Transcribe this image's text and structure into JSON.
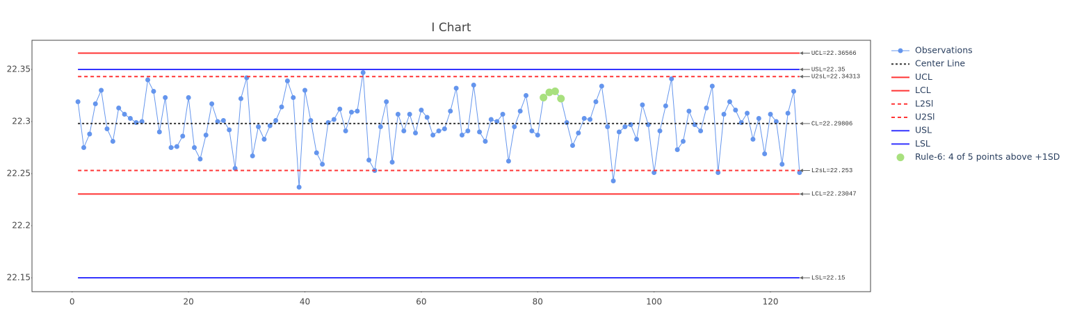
{
  "chart_data": {
    "type": "control",
    "title": "I Chart",
    "xlim": [
      -6.9,
      137.2
    ],
    "xticks": [
      0,
      20,
      40,
      60,
      80,
      100,
      120
    ],
    "ylim": [
      22.1367,
      22.378
    ],
    "yticks": [
      22.15,
      22.2,
      22.25,
      22.3,
      22.35
    ],
    "grid": false,
    "legend": "right",
    "series": [
      {
        "name": "Observations",
        "mode": "lines+markers",
        "color": "#6495ed",
        "x": [
          1,
          2,
          3,
          4,
          5,
          6,
          7,
          8,
          9,
          10,
          11,
          12,
          13,
          14,
          15,
          16,
          17,
          18,
          19,
          20,
          21,
          22,
          23,
          24,
          25,
          26,
          27,
          28,
          29,
          30,
          31,
          32,
          33,
          34,
          35,
          36,
          37,
          38,
          39,
          40,
          41,
          42,
          43,
          44,
          45,
          46,
          47,
          48,
          49,
          50,
          51,
          52,
          53,
          54,
          55,
          56,
          57,
          58,
          59,
          60,
          61,
          62,
          63,
          64,
          65,
          66,
          67,
          68,
          69,
          70,
          71,
          72,
          73,
          74,
          75,
          76,
          77,
          78,
          79,
          80,
          81,
          82,
          83,
          84,
          85,
          86,
          87,
          88,
          89,
          90,
          91,
          92,
          93,
          94,
          95,
          96,
          97,
          98,
          99,
          100,
          101,
          102,
          103,
          104,
          105,
          106,
          107,
          108,
          109,
          110,
          111,
          112,
          113,
          114,
          115,
          116,
          117,
          118,
          119,
          120,
          121,
          122,
          123,
          124,
          125
        ],
        "values": [
          22.319,
          22.275,
          22.288,
          22.317,
          22.33,
          22.293,
          22.281,
          22.313,
          22.307,
          22.303,
          22.299,
          22.3,
          22.34,
          22.329,
          22.29,
          22.323,
          22.275,
          22.276,
          22.286,
          22.323,
          22.275,
          22.264,
          22.287,
          22.317,
          22.3,
          22.301,
          22.292,
          22.255,
          22.322,
          22.342,
          22.267,
          22.295,
          22.283,
          22.296,
          22.301,
          22.314,
          22.339,
          22.323,
          22.237,
          22.33,
          22.301,
          22.27,
          22.259,
          22.299,
          22.302,
          22.312,
          22.291,
          22.309,
          22.31,
          22.347,
          22.263,
          22.253,
          22.295,
          22.319,
          22.261,
          22.307,
          22.291,
          22.307,
          22.289,
          22.311,
          22.304,
          22.287,
          22.291,
          22.293,
          22.31,
          22.332,
          22.287,
          22.291,
          22.335,
          22.29,
          22.281,
          22.302,
          22.3,
          22.307,
          22.262,
          22.295,
          22.31,
          22.325,
          22.291,
          22.287,
          22.323,
          22.328,
          22.329,
          22.322,
          22.299,
          22.277,
          22.289,
          22.303,
          22.302,
          22.319,
          22.334,
          22.295,
          22.243,
          22.29,
          22.295,
          22.297,
          22.283,
          22.316,
          22.297,
          22.251,
          22.291,
          22.315,
          22.341,
          22.273,
          22.281,
          22.31,
          22.297,
          22.291,
          22.313,
          22.334,
          22.251,
          22.307,
          22.319,
          22.311,
          22.299,
          22.308,
          22.283,
          22.303,
          22.269,
          22.307,
          22.3,
          22.259,
          22.308,
          22.329,
          22.251
        ]
      },
      {
        "name": "Center Line",
        "mode": "lines",
        "color": "#333333",
        "dash": "dot",
        "x": [
          1,
          125
        ],
        "values": [
          22.29806,
          22.29806
        ],
        "label": "CL=22.29806"
      },
      {
        "name": "UCL",
        "mode": "lines",
        "color": "#ff3333",
        "dash": "solid",
        "x": [
          1,
          125
        ],
        "values": [
          22.36566,
          22.36566
        ],
        "label": "UCL=22.36566"
      },
      {
        "name": "LCL",
        "mode": "lines",
        "color": "#ff3333",
        "dash": "solid",
        "x": [
          1,
          125
        ],
        "values": [
          22.23047,
          22.23047
        ],
        "label": "LCL=22.23047"
      },
      {
        "name": "L2Sl",
        "mode": "lines",
        "color": "#ff3333",
        "dash": "dash",
        "x": [
          1,
          125
        ],
        "values": [
          22.253,
          22.253
        ],
        "label": "L2sL=22.253"
      },
      {
        "name": "U2Sl",
        "mode": "lines",
        "color": "#ff3333",
        "dash": "dash",
        "x": [
          1,
          125
        ],
        "values": [
          22.34313,
          22.34313
        ],
        "label": "U2sL=22.34313"
      },
      {
        "name": "USL",
        "mode": "lines",
        "color": "#3333ff",
        "dash": "solid",
        "x": [
          1,
          125
        ],
        "values": [
          22.35,
          22.35
        ],
        "label": "USL=22.35"
      },
      {
        "name": "LSL",
        "mode": "lines",
        "color": "#3333ff",
        "dash": "solid",
        "x": [
          1,
          125
        ],
        "values": [
          22.15,
          22.15
        ],
        "label": "LSL=22.15"
      },
      {
        "name": "Rule-6: 4 of 5 points above +1SD",
        "mode": "markers",
        "color": "#a8e07e",
        "size": 5.5,
        "x": [
          81,
          82,
          83,
          84
        ],
        "values": [
          22.323,
          22.328,
          22.329,
          22.322
        ]
      }
    ]
  }
}
